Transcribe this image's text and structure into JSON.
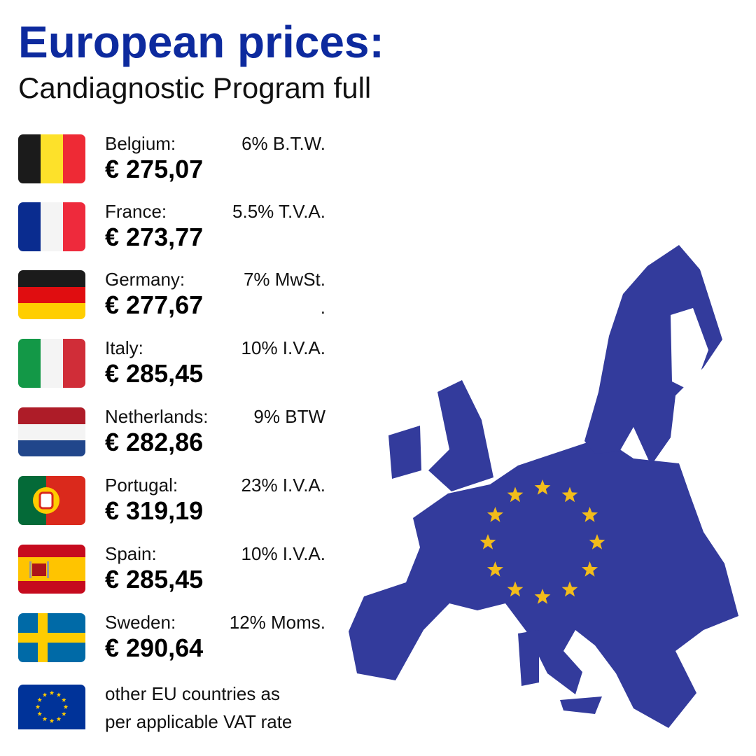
{
  "header": {
    "title": "European prices:",
    "subtitle": "Candiagnostic Program full"
  },
  "rows": [
    {
      "country": "Belgium:",
      "vat": "6% B.T.W.",
      "price": "€ 275,07"
    },
    {
      "country": "France:",
      "vat": "5.5% T.V.A.",
      "price": "€ 273,77"
    },
    {
      "country": "Germany:",
      "vat": "7% MwSt.",
      "price": "€ 277,67",
      "note": "."
    },
    {
      "country": "Italy:",
      "vat": "10% I.V.A.",
      "price": "€ 285,45"
    },
    {
      "country": "Netherlands:",
      "vat": "9% BTW",
      "price": "€ 282,86"
    },
    {
      "country": "Portugal:",
      "vat": "23% I.V.A.",
      "price": "€ 319,19"
    },
    {
      "country": "Spain:",
      "vat": "10% I.V.A.",
      "price": "€ 285,45"
    },
    {
      "country": "Sweden:",
      "vat": "12% Moms.",
      "price": "€ 290,64"
    }
  ],
  "footer": {
    "lines": [
      "other EU countries as",
      "per applicable VAT rate"
    ]
  }
}
